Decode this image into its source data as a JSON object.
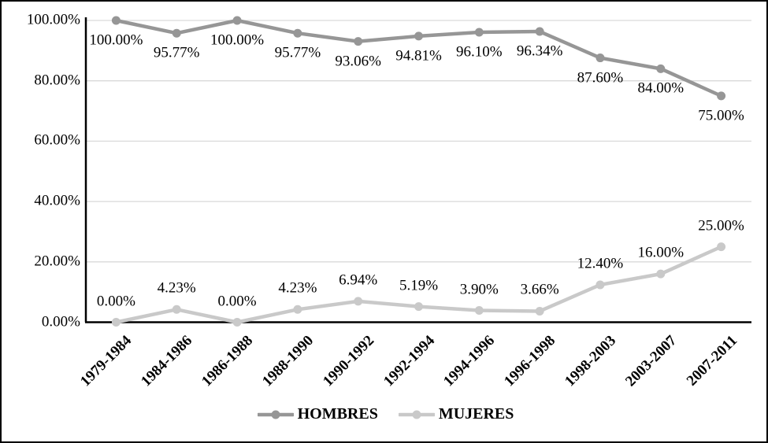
{
  "chart_data": {
    "type": "line",
    "categories": [
      "1979-1984",
      "1984-1986",
      "1986-1988",
      "1988-1990",
      "1990-1992",
      "1992-1994",
      "1994-1996",
      "1996-1998",
      "1998-2003",
      "2003-2007",
      "2007-2011"
    ],
    "series": [
      {
        "name": "HOMBRES",
        "color": "#969696",
        "values": [
          100,
          95.77,
          100,
          95.77,
          93.06,
          94.81,
          96.1,
          96.34,
          87.6,
          84.0,
          75.0
        ],
        "labels": [
          "100.00%",
          "95.77%",
          "100.00%",
          "95.77%",
          "93.06%",
          "94.81%",
          "96.10%",
          "96.34%",
          "87.60%",
          "84.00%",
          "75.00%"
        ],
        "label_position": "below"
      },
      {
        "name": "MUJERES",
        "color": "#C9C9C9",
        "values": [
          0,
          4.23,
          0,
          4.23,
          6.94,
          5.19,
          3.9,
          3.66,
          12.4,
          16.0,
          25.0
        ],
        "labels": [
          "0.00%",
          "4.23%",
          "0.00%",
          "4.23%",
          "6.94%",
          "5.19%",
          "3.90%",
          "3.66%",
          "12.40%",
          "16.00%",
          "25.00%"
        ],
        "label_position": "above"
      }
    ],
    "y_axis": {
      "ticks": [
        "0.00%",
        "20.00%",
        "40.00%",
        "60.00%",
        "80.00%",
        "100.00%"
      ],
      "min": 0,
      "max": 100
    },
    "title": "",
    "xlabel": "",
    "ylabel": "",
    "grid": true,
    "legend_position": "bottom",
    "colors": {
      "gridline": "#D9D9D9",
      "axis": "#000000",
      "text": "#000000"
    }
  }
}
